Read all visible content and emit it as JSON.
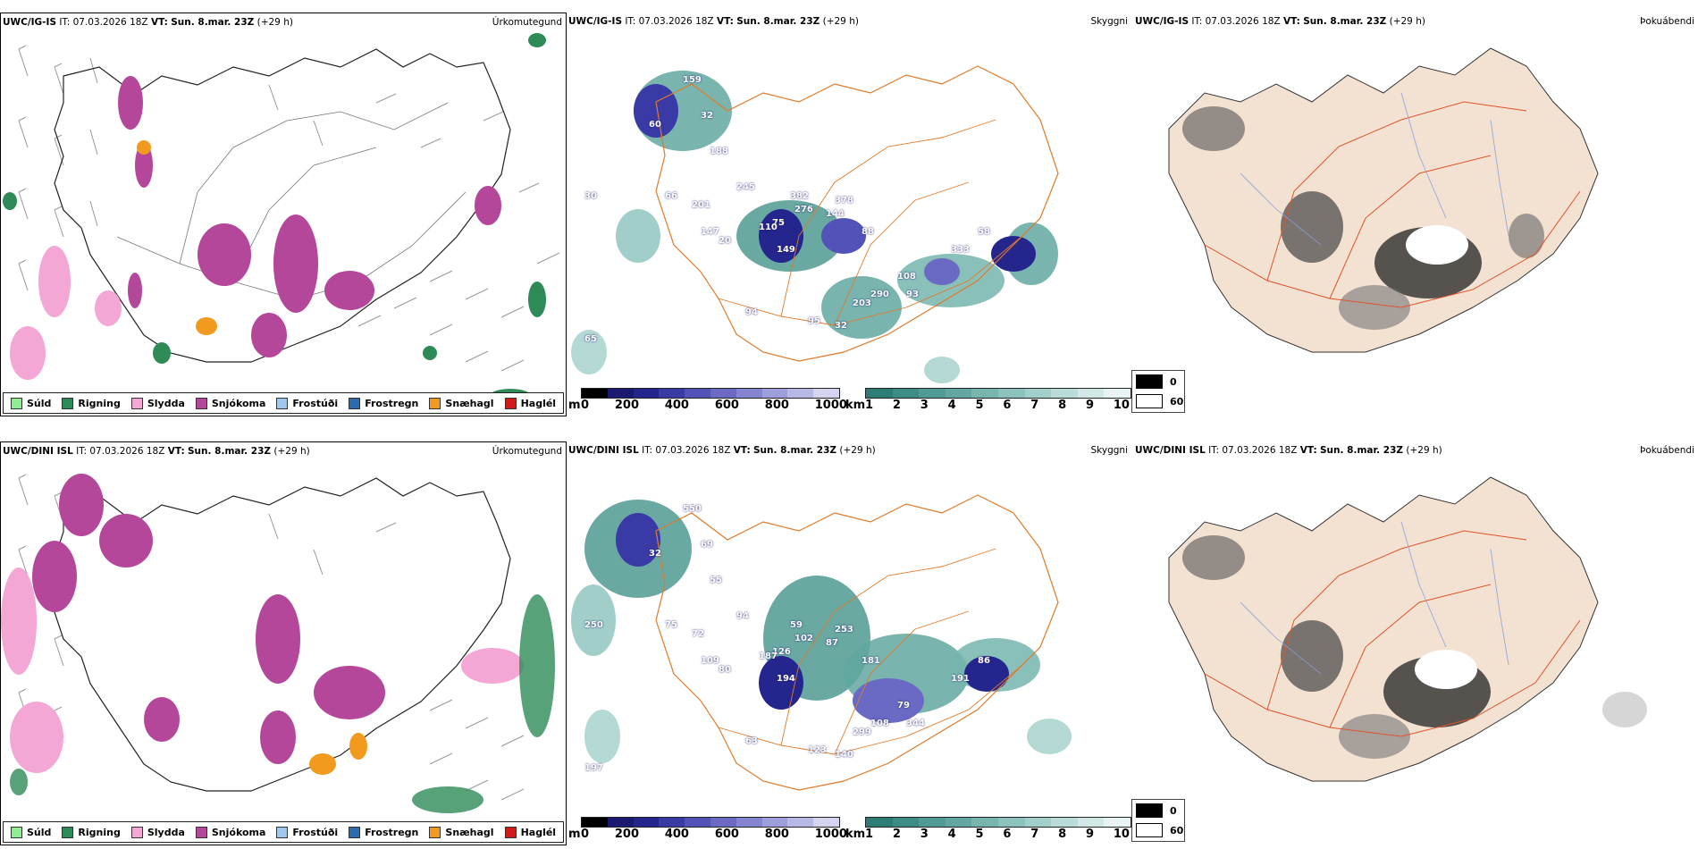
{
  "rows": [
    {
      "model": "UWC/IG-IS",
      "it_label": "IT:",
      "it_value": "07.03.2026 18Z",
      "vt_label": "VT:",
      "vt_value": "Sun. 8.mar. 23Z",
      "lead": "(+29 h)"
    },
    {
      "model": "UWC/DINI ISL",
      "it_label": "IT:",
      "it_value": "07.03.2026 18Z",
      "vt_label": "VT:",
      "vt_value": "Sun. 8.mar. 23Z",
      "lead": "(+29 h)"
    }
  ],
  "panel_titles": {
    "precip_type": "Úrkomutegund",
    "visibility": "Skyggni",
    "fog": "Þokuábendi"
  },
  "precip_legend": [
    {
      "label": "Súld",
      "color": "#90ee90"
    },
    {
      "label": "Rigning",
      "color": "#2e8b57"
    },
    {
      "label": "Slydda",
      "color": "#f4a6d4"
    },
    {
      "label": "Snjókoma",
      "color": "#b5479b"
    },
    {
      "label": "Frostúði",
      "color": "#9fc7f0"
    },
    {
      "label": "Frostregn",
      "color": "#2b6cb0"
    },
    {
      "label": "Snæhagl",
      "color": "#f29a1d"
    },
    {
      "label": "Haglél",
      "color": "#d11a1a"
    }
  ],
  "ceiling_bar": {
    "unit": "m",
    "ticks": [
      "0",
      "200",
      "400",
      "600",
      "800",
      "1000"
    ],
    "colors": [
      "#000000",
      "#1a1a70",
      "#25258e",
      "#3a3aa6",
      "#5252b8",
      "#6a6ac4",
      "#8484d0",
      "#9e9edc",
      "#b8b8e6",
      "#d4d4f0"
    ]
  },
  "visibility_bar": {
    "unit": "km",
    "ticks": [
      "1",
      "2",
      "3",
      "4",
      "5",
      "6",
      "7",
      "8",
      "9",
      "10"
    ],
    "colors": [
      "#2e7d74",
      "#3d8c83",
      "#4f9a92",
      "#62a8a0",
      "#76b5ae",
      "#8bc2bc",
      "#a1cfca",
      "#b8dcd8",
      "#d0e9e6",
      "#e8f4f3"
    ]
  },
  "fog_legend": [
    {
      "value": "0",
      "color": "#000000"
    },
    {
      "value": "60",
      "color": "#ffffff"
    }
  ],
  "ceiling_labels_top": [
    "159",
    "60",
    "32",
    "188",
    "245",
    "66",
    "201",
    "382",
    "276",
    "144",
    "378",
    "75",
    "110",
    "147",
    "88",
    "149",
    "58",
    "333",
    "108",
    "290",
    "93",
    "203",
    "95",
    "32",
    "65",
    "30",
    "20",
    "94"
  ],
  "ceiling_labels_bottom": [
    "550",
    "32",
    "69",
    "55",
    "94",
    "75",
    "72",
    "59",
    "102",
    "87",
    "253",
    "126",
    "187",
    "109",
    "181",
    "194",
    "86",
    "191",
    "79",
    "108",
    "344",
    "299",
    "123",
    "140",
    "197",
    "250",
    "80",
    "63"
  ]
}
